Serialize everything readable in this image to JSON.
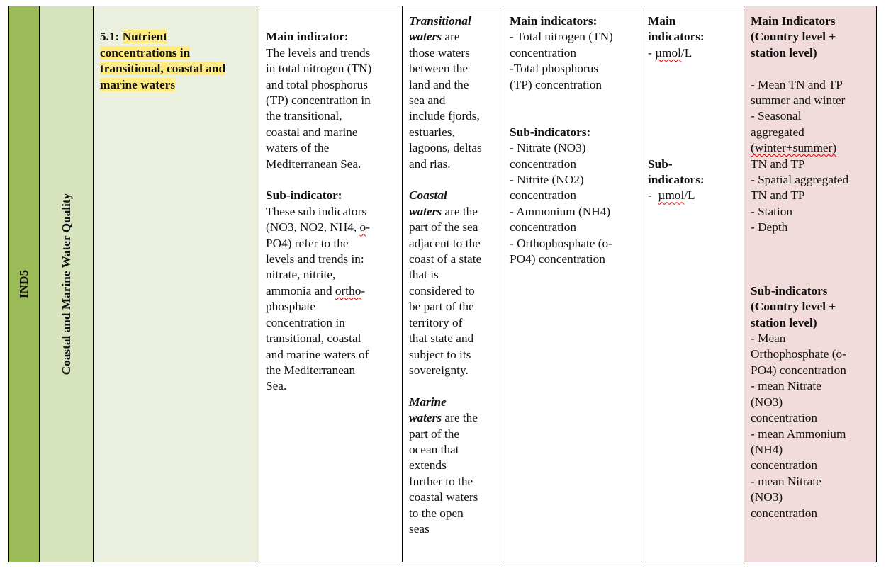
{
  "colors": {
    "col1": "#9bbb59",
    "col2": "#d7e3bc",
    "col3": "#ebf1de",
    "col9": "#f2dcdb",
    "highlight": "#ffeb7f"
  },
  "code": "IND5",
  "theme": "Coastal and Marine Water Quality",
  "cells": [
    {
      "lines": [
        [],
        [
          [
            "5.1: ",
            "b"
          ],
          [
            "Nutrient",
            "hl"
          ]
        ],
        [
          [
            "concentrations in",
            "hl"
          ]
        ],
        [
          [
            "transitional, coastal and",
            "hl"
          ]
        ],
        [
          [
            "marine waters",
            "hl"
          ]
        ]
      ]
    },
    {
      "lines": [
        [],
        [
          [
            "Main indicator:",
            "b"
          ]
        ],
        [
          [
            "The levels and trends",
            ""
          ]
        ],
        [
          [
            "in total nitrogen (TN)",
            ""
          ]
        ],
        [
          [
            "and total phosphorus",
            ""
          ]
        ],
        [
          [
            "(TP) concentration in",
            ""
          ]
        ],
        [
          [
            "the transitional,",
            ""
          ]
        ],
        [
          [
            "coastal and marine",
            ""
          ]
        ],
        [
          [
            "waters of the",
            ""
          ]
        ],
        [
          [
            "Mediterranean Sea.",
            ""
          ]
        ],
        [],
        [
          [
            "Sub-indicator:",
            "b"
          ]
        ],
        [
          [
            "These sub indicators",
            ""
          ]
        ],
        [
          [
            "(NO3, NO2, NH4, ",
            ""
          ],
          [
            "o",
            "s"
          ],
          [
            "-",
            ""
          ]
        ],
        [
          [
            "PO4) refer to the",
            ""
          ]
        ],
        [
          [
            "levels and trends in:",
            ""
          ]
        ],
        [
          [
            "nitrate, nitrite,",
            ""
          ]
        ],
        [
          [
            "ammonia and ",
            ""
          ],
          [
            "ortho",
            "s"
          ],
          [
            "-",
            ""
          ]
        ],
        [
          [
            "phosphate",
            ""
          ]
        ],
        [
          [
            "concentration in",
            ""
          ]
        ],
        [
          [
            "transitional, coastal",
            ""
          ]
        ],
        [
          [
            "and marine waters of",
            ""
          ]
        ],
        [
          [
            "the Mediterranean",
            ""
          ]
        ],
        [
          [
            "Sea.",
            ""
          ]
        ]
      ]
    },
    {
      "lines": [
        [
          [
            "Transitional",
            "bi"
          ]
        ],
        [
          [
            "waters",
            "bi"
          ],
          [
            " are",
            ""
          ]
        ],
        [
          [
            "those waters",
            ""
          ]
        ],
        [
          [
            "between the",
            ""
          ]
        ],
        [
          [
            "land and the",
            ""
          ]
        ],
        [
          [
            "sea and",
            ""
          ]
        ],
        [
          [
            "include fjords,",
            ""
          ]
        ],
        [
          [
            "estuaries,",
            ""
          ]
        ],
        [
          [
            "lagoons, deltas",
            ""
          ]
        ],
        [
          [
            "and rias.",
            ""
          ]
        ],
        [],
        [
          [
            "Coastal",
            "bi"
          ]
        ],
        [
          [
            "waters",
            "bi"
          ],
          [
            " are the",
            ""
          ]
        ],
        [
          [
            "part of the sea",
            ""
          ]
        ],
        [
          [
            "adjacent to the",
            ""
          ]
        ],
        [
          [
            "coast of a state",
            ""
          ]
        ],
        [
          [
            "that is",
            ""
          ]
        ],
        [
          [
            "considered to",
            ""
          ]
        ],
        [
          [
            "be part of the",
            ""
          ]
        ],
        [
          [
            "territory of",
            ""
          ]
        ],
        [
          [
            "that state and",
            ""
          ]
        ],
        [
          [
            "subject to its",
            ""
          ]
        ],
        [
          [
            "sovereignty.",
            ""
          ]
        ],
        [],
        [
          [
            "Marine",
            "bi"
          ]
        ],
        [
          [
            "waters",
            "bi"
          ],
          [
            " are the",
            ""
          ]
        ],
        [
          [
            "part of the",
            ""
          ]
        ],
        [
          [
            "ocean that",
            ""
          ]
        ],
        [
          [
            "extends",
            ""
          ]
        ],
        [
          [
            "further to the",
            ""
          ]
        ],
        [
          [
            "coastal waters",
            ""
          ]
        ],
        [
          [
            "to the open",
            ""
          ]
        ],
        [
          [
            "seas",
            ""
          ]
        ]
      ]
    },
    {
      "lines": [
        [
          [
            "Main indicators:",
            "b"
          ]
        ],
        [
          [
            "- Total nitrogen (TN)",
            ""
          ]
        ],
        [
          [
            "concentration",
            ""
          ]
        ],
        [
          [
            "-Total phosphorus",
            ""
          ]
        ],
        [
          [
            "(TP) concentration",
            ""
          ]
        ],
        [],
        [],
        [
          [
            "Sub-indicators:",
            "b"
          ]
        ],
        [
          [
            "- Nitrate (NO3)",
            ""
          ]
        ],
        [
          [
            "concentration",
            ""
          ]
        ],
        [
          [
            "- Nitrite (NO2)",
            ""
          ]
        ],
        [
          [
            "concentration",
            ""
          ]
        ],
        [
          [
            "- Ammonium (NH4)",
            ""
          ]
        ],
        [
          [
            "concentration",
            ""
          ]
        ],
        [
          [
            "- Orthophosphate (o-",
            ""
          ]
        ],
        [
          [
            "PO4) concentration",
            ""
          ]
        ]
      ]
    },
    {
      "lines": [
        [
          [
            "Main",
            "b"
          ]
        ],
        [
          [
            "indicators:",
            "b"
          ]
        ],
        [
          [
            "- ",
            ""
          ],
          [
            "µmol",
            "s"
          ],
          [
            "/L",
            ""
          ]
        ],
        [],
        [],
        [],
        [],
        [],
        [],
        [
          [
            "Sub-",
            "b"
          ]
        ],
        [
          [
            "indicators:",
            "b"
          ]
        ],
        [
          [
            "-  ",
            ""
          ],
          [
            "µmol",
            "s"
          ],
          [
            "/L",
            ""
          ]
        ]
      ]
    },
    {
      "lines": [
        [
          [
            "Main Indicators",
            "b"
          ]
        ],
        [
          [
            "(Country level +",
            "b"
          ]
        ],
        [
          [
            "station level)",
            "b"
          ]
        ],
        [],
        [
          [
            "- Mean TN and TP",
            ""
          ]
        ],
        [
          [
            "summer and winter",
            ""
          ]
        ],
        [
          [
            "- Seasonal",
            ""
          ]
        ],
        [
          [
            "aggregated",
            ""
          ]
        ],
        [
          [
            "(winter+summer)",
            "s"
          ]
        ],
        [
          [
            "TN and TP",
            ""
          ]
        ],
        [
          [
            "- Spatial aggregated",
            ""
          ]
        ],
        [
          [
            "TN and TP",
            ""
          ]
        ],
        [
          [
            "- Station",
            ""
          ]
        ],
        [
          [
            "- Depth",
            ""
          ]
        ],
        [],
        [],
        [],
        [
          [
            "Sub-indicators",
            "b"
          ]
        ],
        [
          [
            "(Country level +",
            "b"
          ]
        ],
        [
          [
            "station level)",
            "b"
          ]
        ],
        [
          [
            "- Mean",
            ""
          ]
        ],
        [
          [
            "Orthophosphate (o-",
            ""
          ]
        ],
        [
          [
            "PO4) concentration",
            ""
          ]
        ],
        [
          [
            "- mean Nitrate",
            ""
          ]
        ],
        [
          [
            "(NO3)",
            ""
          ]
        ],
        [
          [
            "concentration",
            ""
          ]
        ],
        [
          [
            "- mean Ammonium",
            ""
          ]
        ],
        [
          [
            "(NH4)",
            ""
          ]
        ],
        [
          [
            "concentration",
            ""
          ]
        ],
        [
          [
            "- mean Nitrate",
            ""
          ]
        ],
        [
          [
            "(NO3)",
            ""
          ]
        ],
        [
          [
            "concentration",
            ""
          ]
        ]
      ]
    }
  ]
}
